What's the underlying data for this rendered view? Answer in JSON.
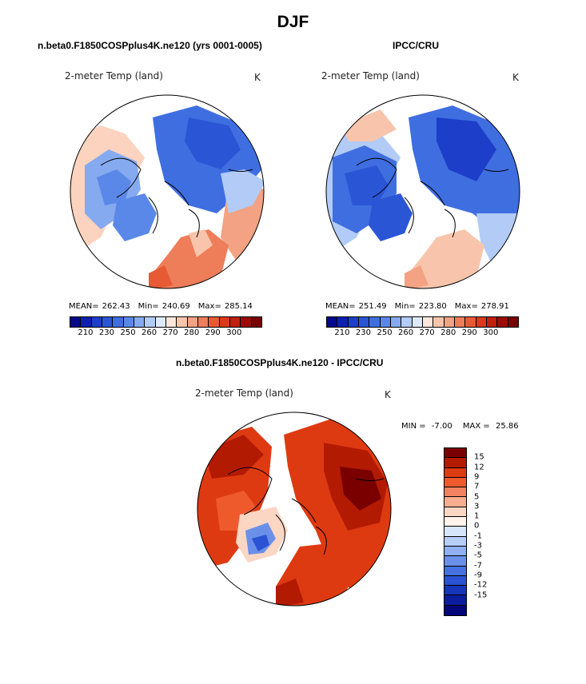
{
  "main_title": "DJF",
  "panel_left": {
    "title": "n.beta0.F1850COSPplus4K.ne120 (yrs 0001-0005)",
    "variable": "2-meter Temp (land)",
    "units": "K",
    "stats": {
      "mean_label": "MEAN=",
      "mean": "262.43",
      "min_label": "Min=",
      "min": "240.69",
      "max_label": "Max=",
      "max": "285.14"
    }
  },
  "panel_right": {
    "title": "IPCC/CRU",
    "variable": "2-meter Temp (land)",
    "units": "K",
    "stats": {
      "mean_label": "MEAN=",
      "mean": "251.49",
      "min_label": "Min=",
      "min": "223.80",
      "max_label": "Max=",
      "max": "278.91"
    }
  },
  "colorbar_temp": {
    "colors": [
      "#08088a",
      "#0c1fb0",
      "#1d3ec8",
      "#2a56d6",
      "#3f6ee0",
      "#5a88e8",
      "#86aaf0",
      "#b2cbf7",
      "#deeafc",
      "#fde7dc",
      "#f8c5ac",
      "#f3a283",
      "#ee7d5a",
      "#e65a34",
      "#d9391c",
      "#c0200d",
      "#9a0c05",
      "#780202"
    ],
    "ticks": [
      "210",
      "230",
      "250",
      "260",
      "270",
      "280",
      "290",
      "300"
    ]
  },
  "panel_diff": {
    "title": "n.beta0.F1850COSPplus4K.ne120 - IPCC/CRU",
    "variable": "2-meter Temp (land)",
    "units": "K",
    "min_label": "MIN =",
    "min": "-7.00",
    "max_label": "MAX =",
    "max": "25.86"
  },
  "colorbar_diff": {
    "colors": [
      "#7a0000",
      "#b31a02",
      "#de3a12",
      "#ef5a2c",
      "#f28262",
      "#f6ad90",
      "#fbd6c3",
      "#fff4ec",
      "#d8e6fb",
      "#b5cdf7",
      "#8fb0f1",
      "#6b90e9",
      "#4670df",
      "#2a52d2",
      "#1735b8",
      "#0b1d9c",
      "#04077a"
    ],
    "labels": [
      "15",
      "12",
      "9",
      "7",
      "5",
      "3",
      "1",
      "0",
      "-1",
      "-3",
      "-5",
      "-7",
      "-9",
      "-12",
      "-15"
    ]
  },
  "map_regions": {
    "europe": "europe-region",
    "asia": "siberia-region",
    "north_america": "north-america-region",
    "greenland": "greenland-region"
  }
}
